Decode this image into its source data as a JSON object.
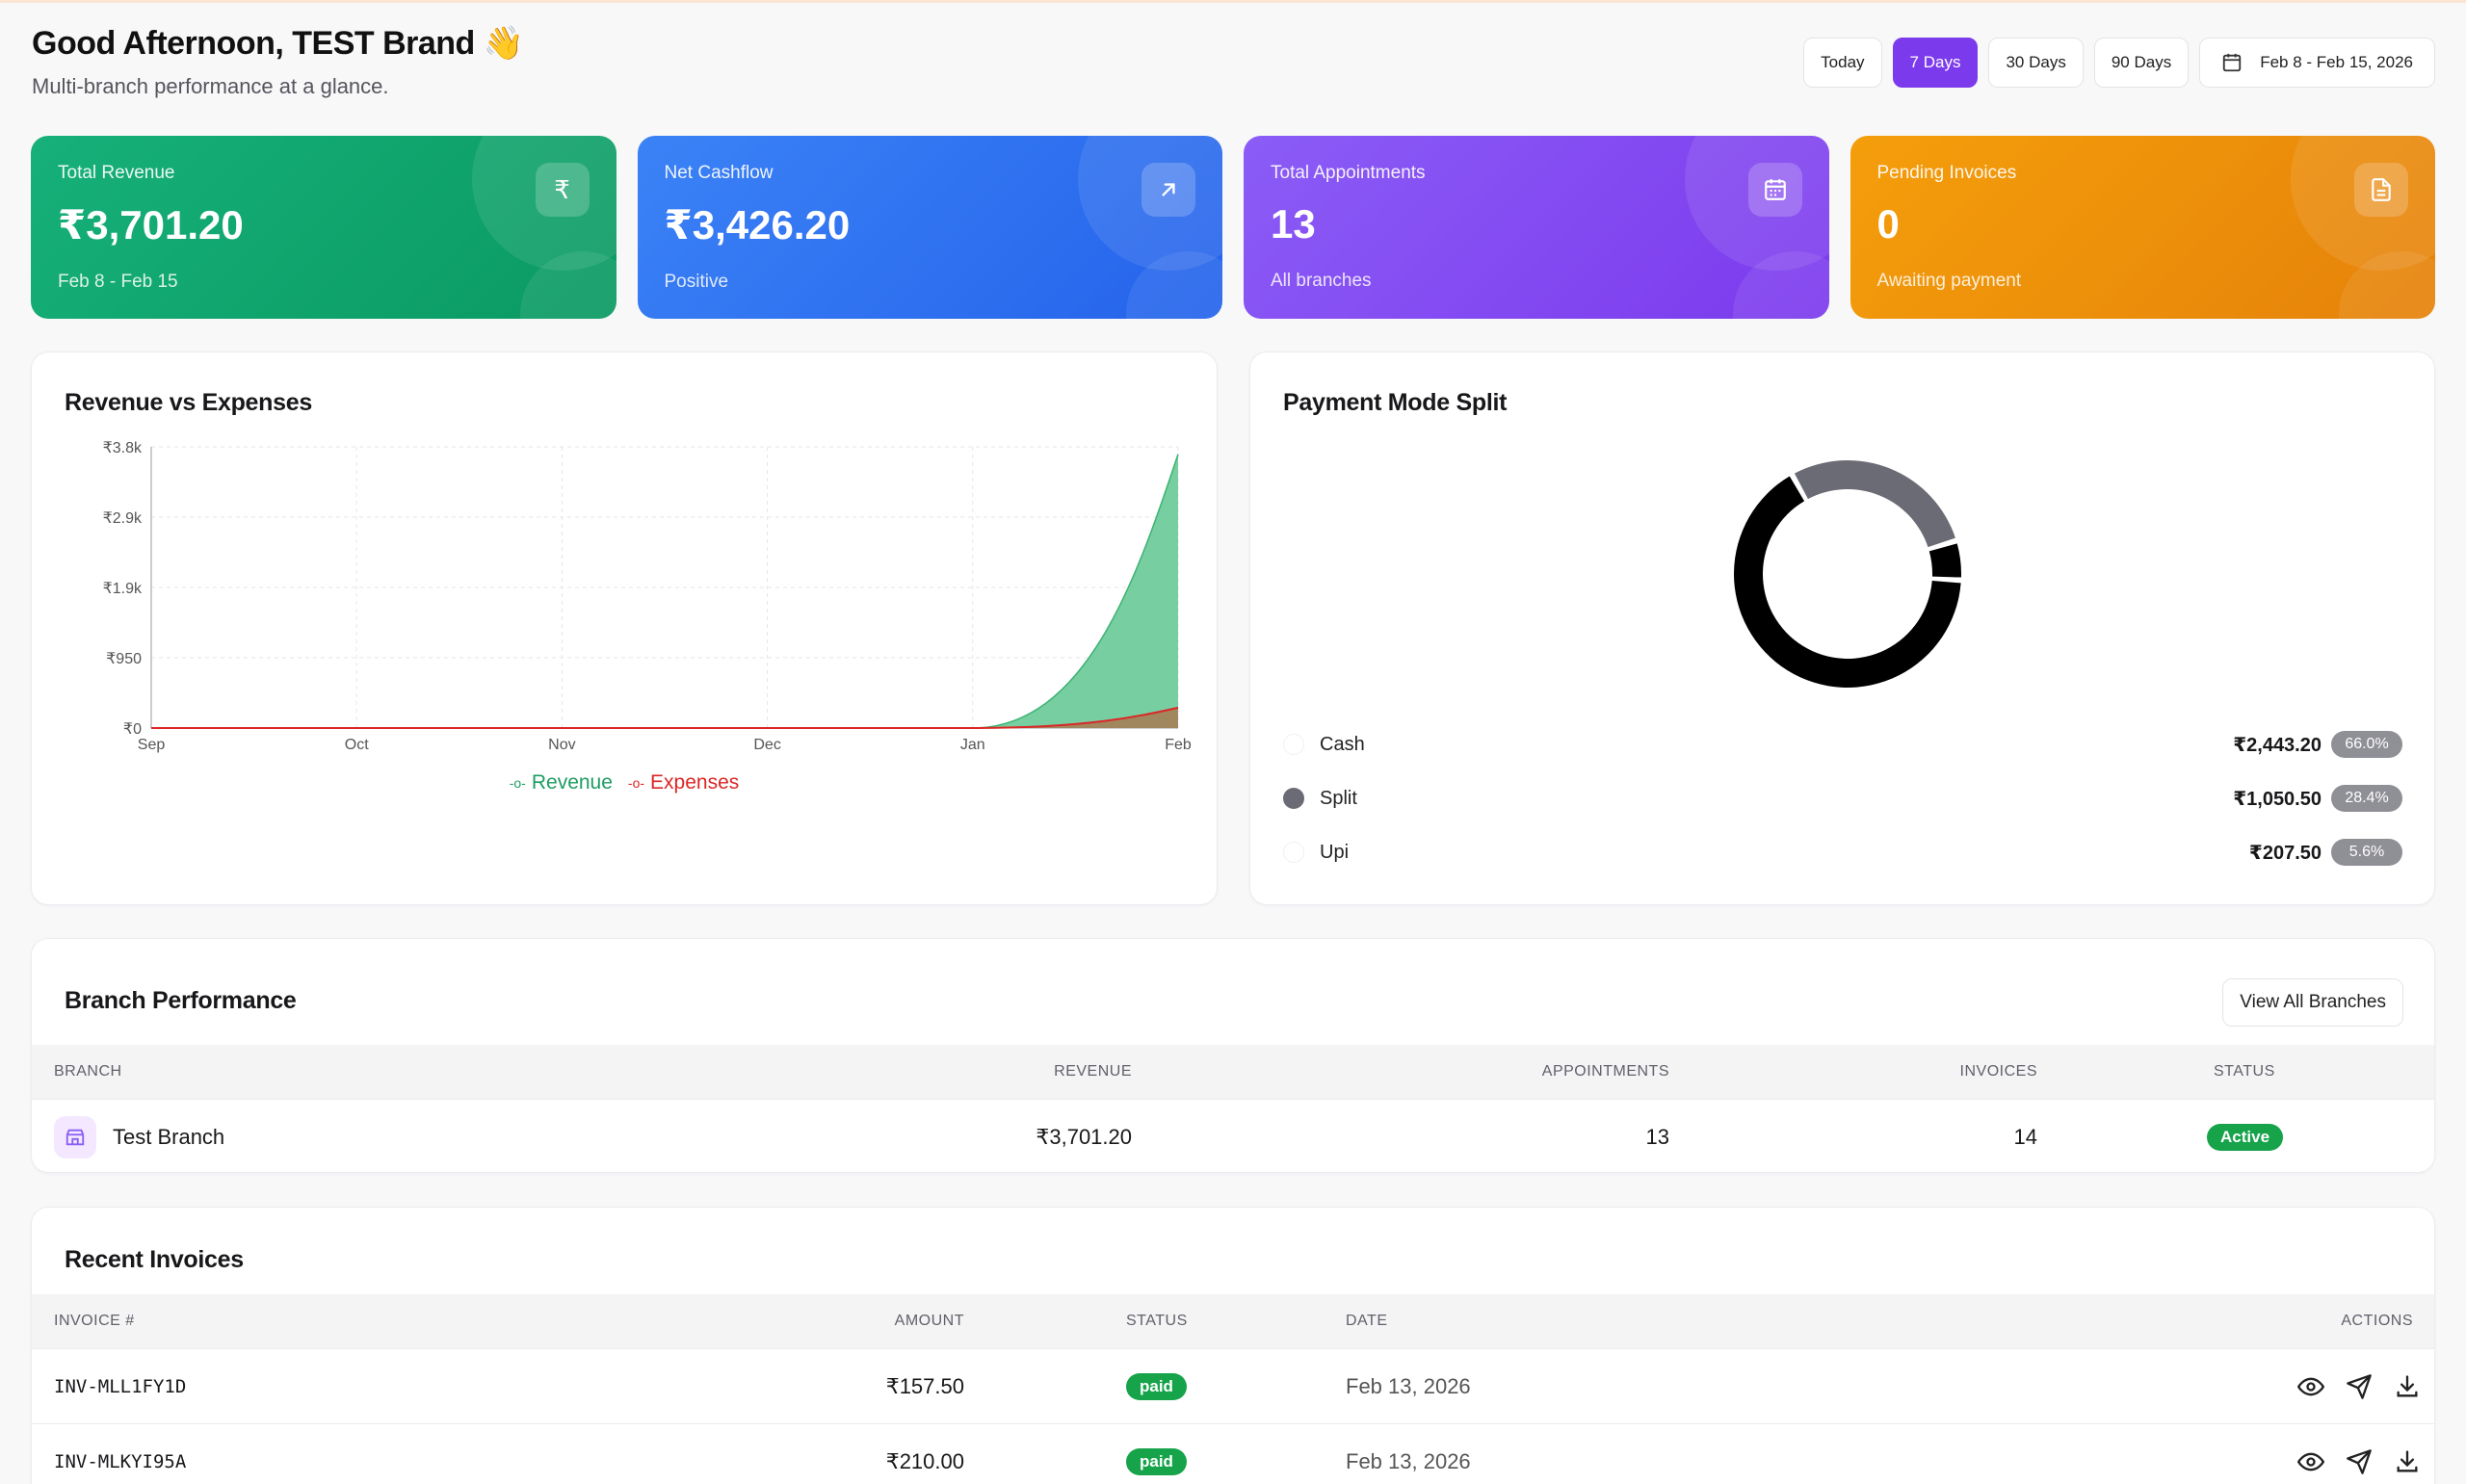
{
  "header": {
    "greeting": "Good Afternoon, TEST Brand 👋",
    "subtitle": "Multi-branch performance at a glance."
  },
  "range": {
    "today": "Today",
    "d7": "7 Days",
    "d30": "30 Days",
    "d90": "90 Days",
    "selected": "7 Days",
    "date_range": "Feb 8 - Feb 15, 2026"
  },
  "kpis": [
    {
      "label": "Total Revenue",
      "value": "₹3,701.20",
      "sub": "Feb 8 - Feb 15",
      "icon": "rupee-icon",
      "color": "#0fa56e"
    },
    {
      "label": "Net Cashflow",
      "value": "₹3,426.20",
      "sub": "Positive",
      "icon": "arrow-up-right-icon",
      "color": "#2f74f0"
    },
    {
      "label": "Total Appointments",
      "value": "13",
      "sub": "All branches",
      "icon": "calendar-icon",
      "color": "#8247ef"
    },
    {
      "label": "Pending Invoices",
      "value": "0",
      "sub": "Awaiting payment",
      "icon": "document-icon",
      "color": "#ef9008"
    }
  ],
  "revenue_chart": {
    "title": "Revenue vs Expenses",
    "legend_revenue": "Revenue",
    "legend_expenses": "Expenses"
  },
  "chart_data": {
    "type": "area",
    "title": "Revenue vs Expenses",
    "x": [
      "Sep",
      "Oct",
      "Nov",
      "Dec",
      "Jan",
      "Feb"
    ],
    "ytick_labels": [
      "₹0",
      "₹950",
      "₹1.9k",
      "₹2.9k",
      "₹3.8k"
    ],
    "ylim": [
      0,
      3800
    ],
    "series": [
      {
        "name": "Revenue",
        "values": [
          0,
          0,
          0,
          0,
          0,
          3701.2
        ],
        "color": "#3cb371"
      },
      {
        "name": "Expenses",
        "values": [
          0,
          0,
          0,
          0,
          0,
          275
        ],
        "color": "#dc2626"
      }
    ],
    "grid": true,
    "legend": "bottom-center"
  },
  "payment": {
    "title": "Payment Mode Split",
    "rows": [
      {
        "name": "Cash",
        "amount": "₹2,443.20",
        "pct": "66.0%",
        "fraction": 0.66,
        "color": "#ffffff"
      },
      {
        "name": "Split",
        "amount": "₹1,050.50",
        "pct": "28.4%",
        "fraction": 0.284,
        "color": "#6b6b75"
      },
      {
        "name": "Upi",
        "amount": "₹207.50",
        "pct": "5.6%",
        "fraction": 0.056,
        "color": "#ffffff"
      }
    ]
  },
  "branches": {
    "title": "Branch Performance",
    "view_all": "View All Branches",
    "columns": {
      "branch": "BRANCH",
      "revenue": "REVENUE",
      "appointments": "APPOINTMENTS",
      "invoices": "INVOICES",
      "status": "STATUS"
    },
    "row": {
      "name": "Test Branch",
      "revenue": "₹3,701.20",
      "appointments": "13",
      "invoices": "14",
      "status": "Active"
    }
  },
  "invoices": {
    "title": "Recent Invoices",
    "columns": {
      "number": "INVOICE #",
      "amount": "AMOUNT",
      "status": "STATUS",
      "date": "DATE",
      "actions": "ACTIONS"
    },
    "rows": [
      {
        "number": "INV-MLL1FY1D",
        "amount": "₹157.50",
        "status": "paid",
        "date": "Feb 13, 2026"
      },
      {
        "number": "INV-MLKYI95A",
        "amount": "₹210.00",
        "status": "paid",
        "date": "Feb 13, 2026"
      }
    ]
  }
}
